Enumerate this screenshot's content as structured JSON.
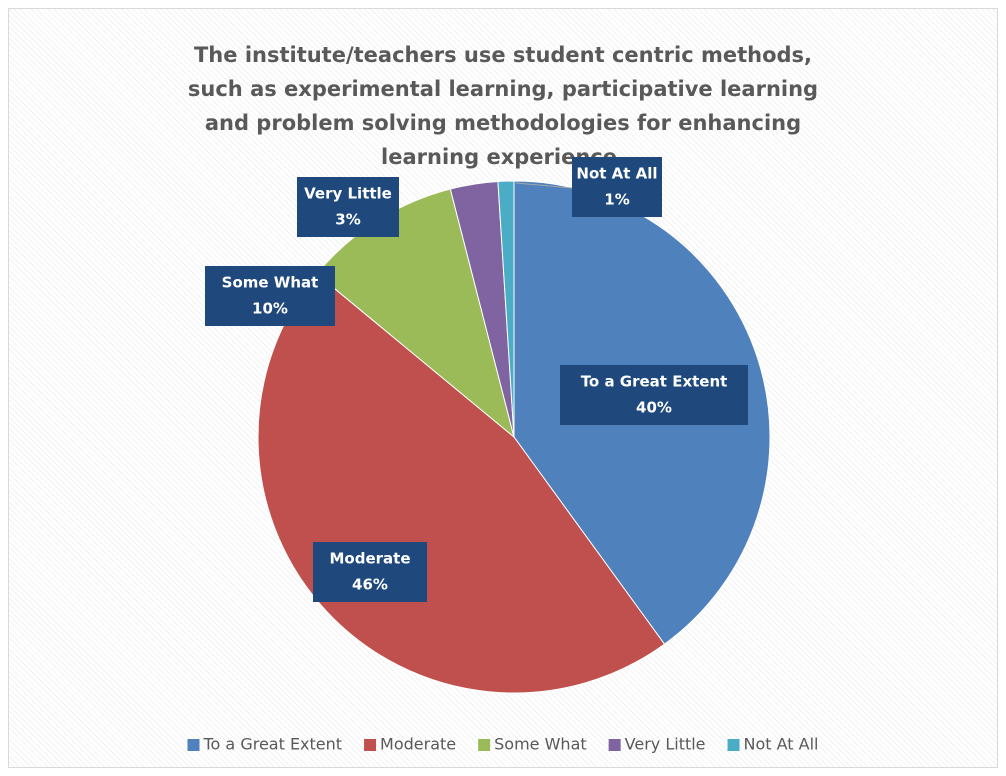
{
  "chart_data": {
    "type": "pie",
    "title": "The institute/teachers use student centric methods, such as experimental learning, participative learning and problem solving methodologies for enhancing learning experience.",
    "categories": [
      "To a Great Extent",
      "Moderate",
      "Some What",
      "Very Little",
      "Not At All"
    ],
    "values": [
      40,
      46,
      10,
      3,
      1
    ],
    "value_labels": [
      "40%",
      "46%",
      "10%",
      "3%",
      "1%"
    ],
    "colors": [
      "#4f81bd",
      "#c0504d",
      "#9bbb59",
      "#8064a2",
      "#4bacc6"
    ],
    "legend": "bottom"
  }
}
